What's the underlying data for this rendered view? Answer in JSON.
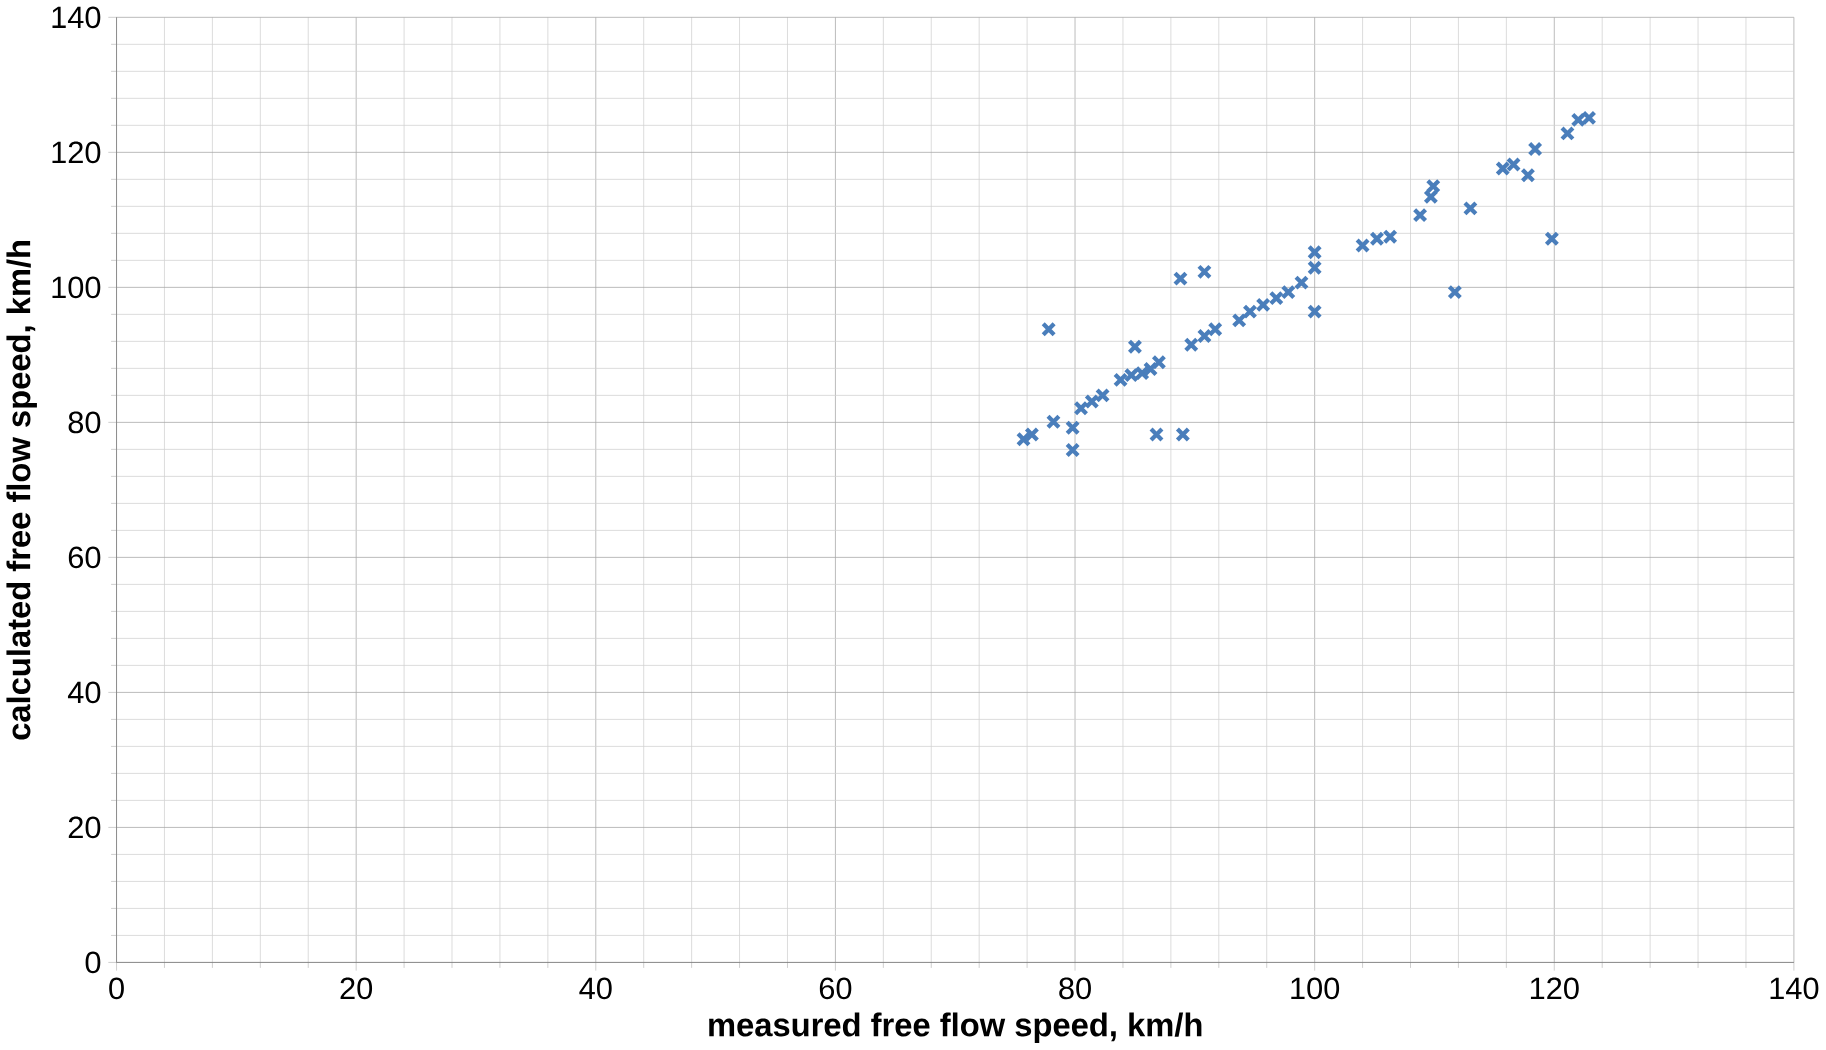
{
  "chart_data": {
    "type": "scatter",
    "xlabel": "measured free flow speed, km/h",
    "ylabel": "calculated free flow speed, km/h",
    "xlim": [
      0,
      140
    ],
    "ylim": [
      0,
      140
    ],
    "xticks": [
      0,
      20,
      40,
      60,
      80,
      100,
      120,
      140
    ],
    "yticks": [
      0,
      20,
      40,
      60,
      80,
      100,
      120,
      140
    ],
    "grid": true,
    "marker": "cross",
    "series": [
      {
        "color": "#4a7ebb",
        "x": [
          75.7,
          76.4,
          78.2,
          77.8,
          79.8,
          79.8,
          80.5,
          81.4,
          82.3,
          83.8,
          84.7,
          85.0,
          85.6,
          86.3,
          87.0,
          86.8,
          89.0,
          88.8,
          90.8,
          89.7,
          90.8,
          91.7,
          93.7,
          94.6,
          95.7,
          96.8,
          97.8,
          98.9,
          100,
          100,
          100,
          104.0,
          105.2,
          106.3,
          108.8,
          109.9,
          109.7,
          113.0,
          111.7,
          115.7,
          116.6,
          117.8,
          118.4,
          119.8,
          121.1,
          122.0,
          122.9
        ],
        "values": [
          77.5,
          78.2,
          80.1,
          93.8,
          79.2,
          75.9,
          82.1,
          83.1,
          84.0,
          86.3,
          87.0,
          91.2,
          87.3,
          87.9,
          88.9,
          78.2,
          78.2,
          101.3,
          102.3,
          91.5,
          92.8,
          93.8,
          95.1,
          96.4,
          97.4,
          98.4,
          99.3,
          100.7,
          105.2,
          102.9,
          96.4,
          106.2,
          107.2,
          107.5,
          110.7,
          115.0,
          113.4,
          111.7,
          99.3,
          117.6,
          118.2,
          116.6,
          120.5,
          107.2,
          122.8,
          124.8,
          125.1
        ]
      }
    ]
  }
}
